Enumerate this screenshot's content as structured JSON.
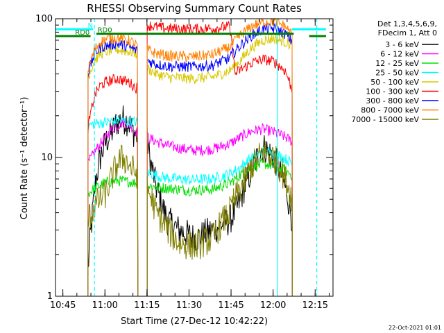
{
  "chart_data": {
    "type": "line",
    "title": "RHESSI Observing Summary Count Rates",
    "xlabel": "Start Time (27-Dec-12 10:42:22)",
    "ylabel": "Count Rate (s⁻¹ detector⁻¹)",
    "x_unit": "minutes after 10:42:22 UT",
    "xlim": [
      0,
      99
    ],
    "ylim": [
      1,
      100
    ],
    "yscale": "log",
    "x_ticks": [
      {
        "t": 2.63,
        "label": "10:45"
      },
      {
        "t": 17.63,
        "label": "11:00"
      },
      {
        "t": 32.63,
        "label": "11:15"
      },
      {
        "t": 47.63,
        "label": "11:30"
      },
      {
        "t": 62.63,
        "label": "11:45"
      },
      {
        "t": 77.63,
        "label": "12:00"
      },
      {
        "t": 92.63,
        "label": "12:15"
      }
    ],
    "y_ticks": [
      {
        "v": 1,
        "label": "1"
      },
      {
        "v": 10,
        "label": "10"
      },
      {
        "v": 100,
        "label": "100"
      }
    ],
    "legend_header": [
      "Det 1,3,4,5,6,9,",
      "FDecim 1, Att 0"
    ],
    "legend_position": "right",
    "series": [
      {
        "name": "3 - 6 keV",
        "color": "#000000",
        "segments": [
          [
            [
              11.6,
              1.5
            ],
            [
              13,
              3.5
            ],
            [
              14.5,
              7
            ],
            [
              16,
              10
            ],
            [
              18,
              13
            ],
            [
              20,
              15
            ],
            [
              22,
              18
            ],
            [
              24,
              19
            ],
            [
              26,
              18
            ],
            [
              28,
              15
            ],
            [
              29.4,
              14
            ]
          ],
          [
            [
              32.7,
              13
            ],
            [
              34,
              9
            ],
            [
              36,
              6
            ],
            [
              38,
              4.5
            ],
            [
              40,
              3.5
            ],
            [
              44,
              3
            ],
            [
              50,
              2.6
            ],
            [
              56,
              3
            ],
            [
              62,
              3.5
            ],
            [
              64,
              4
            ],
            [
              66,
              5
            ],
            [
              68,
              6.5
            ],
            [
              70,
              8
            ],
            [
              72,
              10
            ],
            [
              74,
              12
            ],
            [
              76,
              11
            ],
            [
              78,
              10
            ],
            [
              80,
              8
            ],
            [
              82,
              6
            ],
            [
              84,
              4
            ],
            [
              84.5,
              3.5
            ]
          ]
        ]
      },
      {
        "name": "6 - 12 keV",
        "color": "#ff00ff",
        "segments": [
          [
            [
              11.6,
              9
            ],
            [
              14,
              11
            ],
            [
              16,
              12.5
            ],
            [
              18,
              14
            ],
            [
              20,
              16
            ],
            [
              22,
              17
            ],
            [
              24,
              18
            ],
            [
              26,
              17.5
            ],
            [
              28,
              16
            ],
            [
              29.4,
              15
            ]
          ],
          [
            [
              32.7,
              14
            ],
            [
              36,
              13
            ],
            [
              40,
              12.2
            ],
            [
              44,
              11.7
            ],
            [
              50,
              11.2
            ],
            [
              56,
              11.5
            ],
            [
              62,
              12.5
            ],
            [
              66,
              14
            ],
            [
              70,
              15.5
            ],
            [
              74,
              16
            ],
            [
              78,
              15.2
            ],
            [
              82,
              14
            ],
            [
              84.5,
              13
            ]
          ]
        ]
      },
      {
        "name": "12 - 25 keV",
        "color": "#00e000",
        "segments": [
          [
            [
              11.6,
              5.5
            ],
            [
              14,
              6
            ],
            [
              16,
              6.3
            ],
            [
              18,
              6.6
            ],
            [
              22,
              6.8
            ],
            [
              26,
              6.7
            ],
            [
              29.4,
              6.5
            ]
          ],
          [
            [
              32.7,
              6.3
            ],
            [
              36,
              6.1
            ],
            [
              40,
              6
            ],
            [
              48,
              5.8
            ],
            [
              56,
              5.9
            ],
            [
              62,
              6.5
            ],
            [
              66,
              7.5
            ],
            [
              70,
              8.5
            ],
            [
              74,
              9
            ],
            [
              78,
              8.7
            ],
            [
              82,
              8
            ],
            [
              84.5,
              7.5
            ]
          ]
        ]
      },
      {
        "name": "25 - 50 keV",
        "color": "#00ffff",
        "segments": [
          [
            [
              11.6,
              17
            ],
            [
              14,
              17.5
            ],
            [
              18,
              18
            ],
            [
              22,
              18.5
            ],
            [
              26,
              18.2
            ],
            [
              29.4,
              18
            ]
          ],
          [
            [
              32.7,
              7.8
            ],
            [
              36,
              7.4
            ],
            [
              40,
              7.1
            ],
            [
              48,
              6.9
            ],
            [
              56,
              7
            ],
            [
              62,
              7.6
            ],
            [
              66,
              8.5
            ],
            [
              70,
              10
            ],
            [
              74,
              11
            ],
            [
              78,
              10.7
            ],
            [
              82,
              9.8
            ],
            [
              84.5,
              9
            ]
          ]
        ]
      },
      {
        "name": "50 - 100 keV",
        "color": "#d8c800",
        "segments": [
          [
            [
              11.6,
              38
            ],
            [
              14,
              50
            ],
            [
              16,
              56
            ],
            [
              18,
              58
            ],
            [
              22,
              60
            ],
            [
              26,
              58
            ],
            [
              29.4,
              56
            ]
          ],
          [
            [
              32.7,
              44
            ],
            [
              36,
              40
            ],
            [
              40,
              38
            ],
            [
              48,
              37
            ],
            [
              56,
              38
            ],
            [
              62,
              42
            ],
            [
              66,
              50
            ],
            [
              70,
              62
            ],
            [
              74,
              70
            ],
            [
              78,
              72
            ],
            [
              82,
              68
            ],
            [
              84.5,
              64
            ]
          ]
        ]
      },
      {
        "name": "100 - 300 keV",
        "color": "#ff0000",
        "segments": [
          [
            [
              11.6,
              16
            ],
            [
              14,
              28
            ],
            [
              16,
              33
            ],
            [
              18,
              35
            ],
            [
              22,
              37
            ],
            [
              26,
              35
            ],
            [
              29.4,
              31
            ]
          ],
          [
            [
              32.7,
              90
            ],
            [
              36,
              87
            ],
            [
              40,
              85
            ],
            [
              48,
              84
            ],
            [
              56,
              85
            ],
            [
              62,
              88
            ],
            [
              64,
              40
            ],
            [
              66,
              43
            ],
            [
              70,
              48
            ],
            [
              74,
              51
            ],
            [
              78,
              49
            ],
            [
              82,
              42
            ],
            [
              84.5,
              30
            ]
          ]
        ]
      },
      {
        "name": "300 - 800 keV",
        "color": "#0000ff",
        "segments": [
          [
            [
              11.6,
              40
            ],
            [
              14,
              56
            ],
            [
              16,
              62
            ],
            [
              18,
              64
            ],
            [
              22,
              66
            ],
            [
              26,
              63
            ],
            [
              29.4,
              58
            ]
          ],
          [
            [
              32.7,
              50
            ],
            [
              36,
              47
            ],
            [
              40,
              45.5
            ],
            [
              48,
              45
            ],
            [
              56,
              46
            ],
            [
              62,
              52
            ],
            [
              66,
              64
            ],
            [
              70,
              76
            ],
            [
              74,
              84
            ],
            [
              78,
              85
            ],
            [
              82,
              78
            ],
            [
              84.5,
              68
            ]
          ]
        ]
      },
      {
        "name": "800 - 7000 keV",
        "color": "#ff8000",
        "segments": [
          [
            [
              11.6,
              42
            ],
            [
              14,
              60
            ],
            [
              16,
              68
            ],
            [
              18,
              71
            ],
            [
              22,
              73
            ],
            [
              26,
              70
            ],
            [
              29.4,
              64
            ]
          ],
          [
            [
              32.7,
              60
            ],
            [
              36,
              56
            ],
            [
              40,
              54
            ],
            [
              48,
              53
            ],
            [
              56,
              55
            ],
            [
              62,
              62
            ],
            [
              66,
              76
            ],
            [
              70,
              88
            ],
            [
              74,
              95
            ],
            [
              78,
              96
            ],
            [
              82,
              88
            ],
            [
              84.5,
              76
            ]
          ]
        ]
      },
      {
        "name": "7000 - 15000 keV",
        "color": "#808000",
        "segments": [
          [
            [
              11.6,
              3.5
            ],
            [
              14,
              4.5
            ],
            [
              16,
              5
            ],
            [
              18,
              5.5
            ],
            [
              20,
              7
            ],
            [
              22,
              9
            ],
            [
              24,
              10
            ],
            [
              26,
              9
            ],
            [
              28,
              8
            ],
            [
              29.4,
              7.5
            ]
          ],
          [
            [
              32.7,
              6
            ],
            [
              36,
              4
            ],
            [
              40,
              3
            ],
            [
              44,
              2.4
            ],
            [
              50,
              2.3
            ],
            [
              56,
              2.6
            ],
            [
              62,
              4
            ],
            [
              66,
              6
            ],
            [
              70,
              8.5
            ],
            [
              74,
              11
            ],
            [
              78,
              10
            ],
            [
              82,
              7
            ],
            [
              84.5,
              5
            ]
          ]
        ]
      }
    ],
    "vertical_lines": [
      {
        "t": 13.9,
        "style": "dashed",
        "color": "#00ffff"
      },
      {
        "t": 79.2,
        "style": "solid",
        "color": "#00ffff"
      },
      {
        "t": 93.2,
        "style": "dashed",
        "color": "#00ffff"
      }
    ],
    "annotation_bars": [
      {
        "label": "N",
        "color": "#00ffff",
        "y": 84,
        "x_start": 0,
        "x_end": 13.4,
        "label_t": 11.5
      },
      {
        "label": "N",
        "color": "#00ffff",
        "y": 84,
        "x_start": 84.3,
        "x_end": 96.5,
        "label_t": null
      },
      {
        "label": "RD0",
        "color": "#008000",
        "y": 75,
        "x_start": 0,
        "x_end": 12.5,
        "label_t": 7
      },
      {
        "label": "RD0",
        "color": "#008000",
        "y": 78,
        "x_start": 14.6,
        "x_end": 85,
        "label_t": 15
      },
      {
        "label": "",
        "color": "#008000",
        "y": 75,
        "x_start": 90.5,
        "x_end": 96.5,
        "label_t": null
      }
    ],
    "grid": false
  },
  "footer": {
    "timestamp": "22-Oct-2021 01:01"
  }
}
